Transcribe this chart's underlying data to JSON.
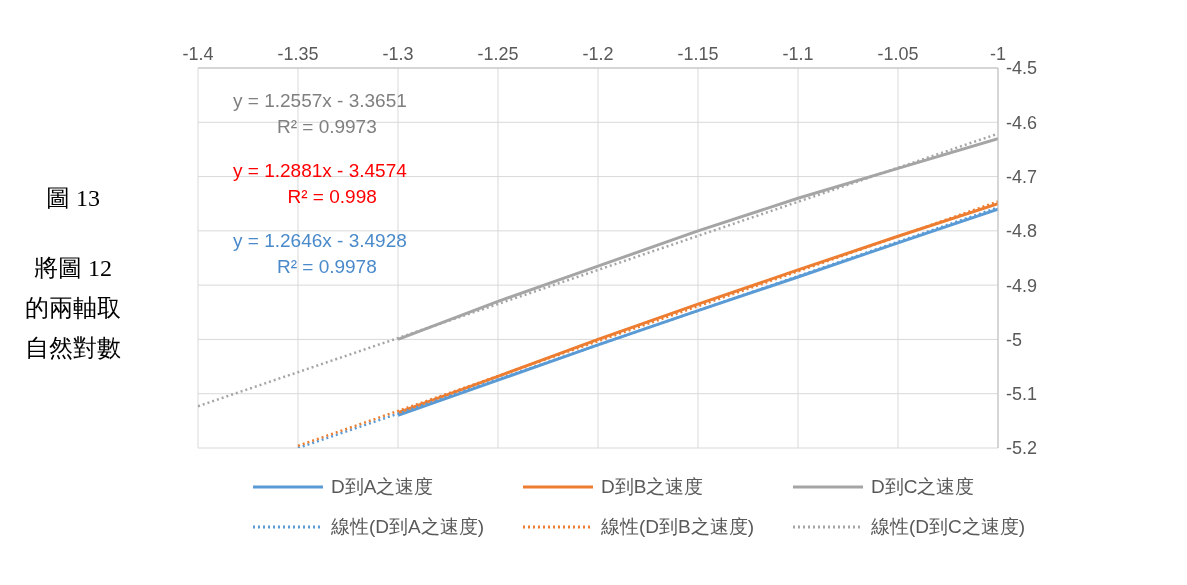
{
  "chart_data": {
    "type": "line",
    "xlim": [
      -1.4,
      -1
    ],
    "xticks": [
      -1.4,
      -1.35,
      -1.3,
      -1.25,
      -1.2,
      -1.15,
      -1.1,
      -1.05,
      -1
    ],
    "ylim": [
      -5.2,
      -4.5
    ],
    "yticks": [
      -5.2,
      -5.1,
      -5,
      -4.9,
      -4.8,
      -4.7,
      -4.6,
      -4.5
    ],
    "grid": true,
    "legend": "bottom",
    "marker": "none",
    "series": [
      {
        "name": "D到A之速度",
        "color": "#5b9bd5",
        "line_style": "solid",
        "x": [
          -1.3,
          -1.25,
          -1.2,
          -1.15,
          -1.1,
          -1.05,
          -1
        ],
        "values": [
          -5.14,
          -5.075,
          -5.01,
          -4.947,
          -4.885,
          -4.822,
          -4.76
        ]
      },
      {
        "name": "D到B之速度",
        "color": "#ed7d31",
        "line_style": "solid",
        "x": [
          -1.3,
          -1.25,
          -1.2,
          -1.15,
          -1.1,
          -1.05,
          -1
        ],
        "values": [
          -5.135,
          -5.068,
          -5.0,
          -4.935,
          -4.872,
          -4.81,
          -4.75
        ]
      },
      {
        "name": "D到C之速度",
        "color": "#a5a5a5",
        "line_style": "solid",
        "x": [
          -1.3,
          -1.25,
          -1.2,
          -1.15,
          -1.1,
          -1.05,
          -1
        ],
        "values": [
          -5.0,
          -4.93,
          -4.865,
          -4.8,
          -4.74,
          -4.685,
          -4.63
        ]
      },
      {
        "name": "線性(D到A之速度)",
        "type": "line",
        "color": "#5b9bd5",
        "line_style": "dotted",
        "x": [
          -1.35,
          -1
        ],
        "values": [
          -5.2,
          -4.757
        ]
      },
      {
        "name": "線性(D到B之速度)",
        "type": "line",
        "color": "#ed7d31",
        "line_style": "dotted",
        "x": [
          -1.35,
          -1
        ],
        "values": [
          -5.196,
          -4.746
        ]
      },
      {
        "name": "線性(D到C之速度)",
        "type": "line",
        "color": "#a5a5a5",
        "line_style": "dotted",
        "x": [
          -1.4,
          -1
        ],
        "values": [
          -5.123,
          -4.621
        ]
      }
    ],
    "annotations": [
      "圖 13",
      "將圖 12 的兩軸取自然對數",
      "y = 1.2557x - 3.3651",
      "R² = 0.9973",
      "y = 1.2881x - 3.4574",
      "R² = 0.998",
      "y = 1.2646x - 3.4928",
      "R² = 0.9978"
    ]
  }
}
